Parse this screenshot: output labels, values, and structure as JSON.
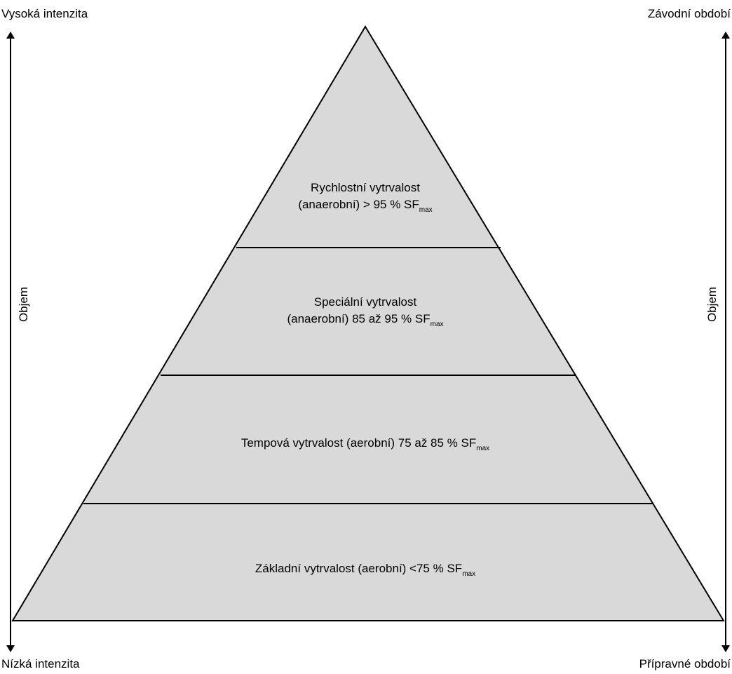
{
  "corners": {
    "top_left": "Vysoká intenzita",
    "top_right": "Závodní období",
    "bottom_left": "Nízká intenzita",
    "bottom_right": "Přípravné období"
  },
  "axes": {
    "left_label": "Objem",
    "right_label": "Objem"
  },
  "pyramid": {
    "fill_color": "#d9d9d9",
    "stroke_color": "#000000",
    "layers": [
      {
        "line1": "Rychlostní vytrvalost",
        "line2": "(anaerobní) > 95 % SF",
        "subscript": "max"
      },
      {
        "line1": "Speciální vytrvalost",
        "line2": "(anaerobní) 85 až 95 % SF",
        "subscript": "max"
      },
      {
        "line1": "Tempová vytrvalost (aerobní) 75 až 85 % SF",
        "subscript": "max"
      },
      {
        "line1": "Základní vytrvalost (aerobní) <75 % SF",
        "subscript": "max"
      }
    ]
  }
}
